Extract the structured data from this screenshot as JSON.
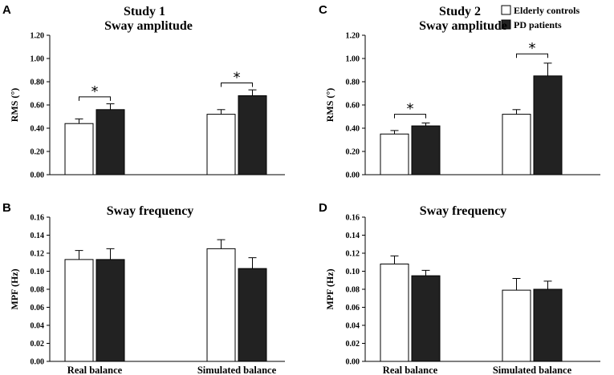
{
  "figure": {
    "study1_title": "Study 1",
    "study2_title": "Study 2",
    "legend": [
      {
        "label": "Elderly controls",
        "color": "#ffffff"
      },
      {
        "label": "PD patients",
        "color": "#222222"
      }
    ]
  },
  "chart_data": [
    {
      "panel": "A",
      "type": "bar",
      "title": "Sway amplitude",
      "ylabel": "RMS (°)",
      "ylim": [
        0,
        1.2
      ],
      "yticks": [
        "0.00",
        "0.20",
        "0.40",
        "0.60",
        "0.80",
        "1.00",
        "1.20"
      ],
      "categories": [
        "Real balance",
        "Simulated balance"
      ],
      "show_categories": false,
      "series": [
        {
          "name": "Elderly controls",
          "values": [
            0.44,
            0.52
          ],
          "errors": [
            0.04,
            0.04
          ]
        },
        {
          "name": "PD patients",
          "values": [
            0.56,
            0.68
          ],
          "errors": [
            0.05,
            0.05
          ]
        }
      ],
      "significance": [
        {
          "category": 0,
          "label": "*",
          "level": 0.67
        },
        {
          "category": 1,
          "label": "*",
          "level": 0.79
        }
      ]
    },
    {
      "panel": "B",
      "type": "bar",
      "title": "Sway frequency",
      "ylabel": "MPF (Hz)",
      "ylim": [
        0,
        0.16
      ],
      "yticks": [
        "0.00",
        "0.02",
        "0.04",
        "0.06",
        "0.08",
        "0.10",
        "0.12",
        "0.14",
        "0.16"
      ],
      "categories": [
        "Real balance",
        "Simulated balance"
      ],
      "show_categories": true,
      "series": [
        {
          "name": "Elderly controls",
          "values": [
            0.113,
            0.125
          ],
          "errors": [
            0.01,
            0.01
          ]
        },
        {
          "name": "PD patients",
          "values": [
            0.113,
            0.103
          ],
          "errors": [
            0.012,
            0.012
          ]
        }
      ],
      "significance": []
    },
    {
      "panel": "C",
      "type": "bar",
      "title": "Sway amplitude",
      "ylabel": "RMS (°)",
      "ylim": [
        0,
        1.2
      ],
      "yticks": [
        "0.00",
        "0.20",
        "0.40",
        "0.60",
        "0.80",
        "1.00",
        "1.20"
      ],
      "categories": [
        "Real balance",
        "Simulated balance"
      ],
      "show_categories": false,
      "series": [
        {
          "name": "Elderly controls",
          "values": [
            0.35,
            0.52
          ],
          "errors": [
            0.03,
            0.04
          ]
        },
        {
          "name": "PD patients",
          "values": [
            0.42,
            0.85
          ],
          "errors": [
            0.025,
            0.11
          ]
        }
      ],
      "significance": [
        {
          "category": 0,
          "label": "*",
          "level": 0.52
        },
        {
          "category": 1,
          "label": "*",
          "level": 1.04
        }
      ]
    },
    {
      "panel": "D",
      "type": "bar",
      "title": "Sway frequency",
      "ylabel": "MPF (Hz)",
      "ylim": [
        0,
        0.16
      ],
      "yticks": [
        "0.00",
        "0.02",
        "0.04",
        "0.06",
        "0.08",
        "0.10",
        "0.12",
        "0.14",
        "0.16"
      ],
      "categories": [
        "Real balance",
        "Simulated balance"
      ],
      "show_categories": true,
      "series": [
        {
          "name": "Elderly controls",
          "values": [
            0.108,
            0.079
          ],
          "errors": [
            0.009,
            0.013
          ]
        },
        {
          "name": "PD patients",
          "values": [
            0.095,
            0.08
          ],
          "errors": [
            0.006,
            0.009
          ]
        }
      ],
      "significance": []
    }
  ]
}
